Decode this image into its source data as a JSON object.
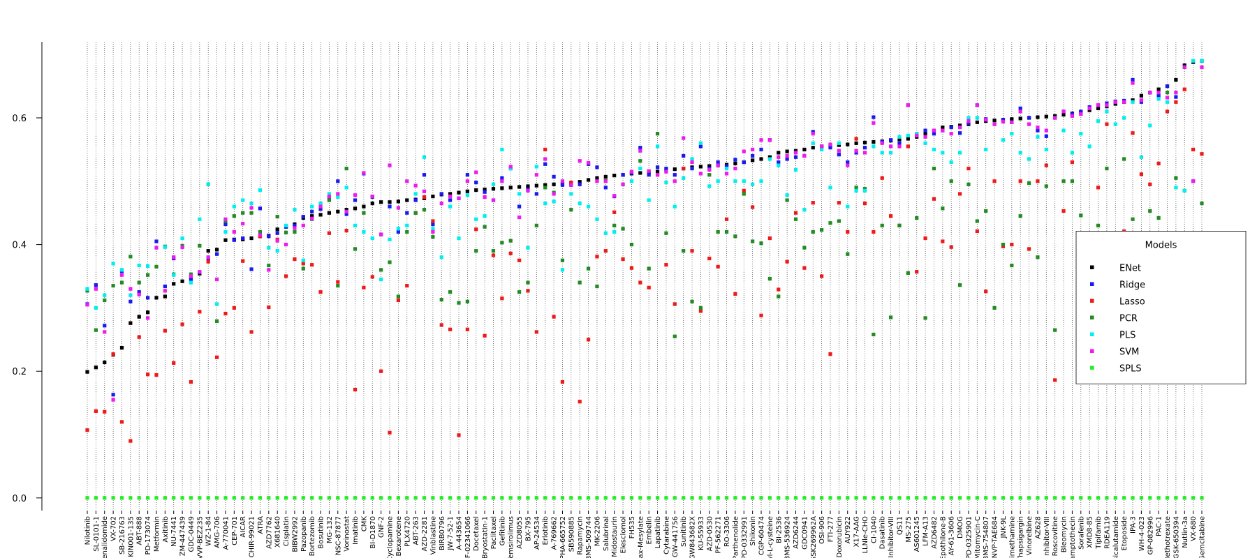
{
  "chart_data": {
    "type": "scatter",
    "categories": [
      "Nilotinib",
      "SL-0101-1",
      "enalidomide",
      "VX-702",
      "SB-216763",
      "KIN001-135",
      "ABT-888",
      "PD-173074",
      "Metformin",
      "Axitinib",
      "NU-7441",
      "ZM-447439",
      "GDC-0449",
      "VVP-BEZ235",
      "WZ-1-84",
      "AMG-706",
      "A-770041",
      "CEP-701",
      "AICAR",
      "CHIR-99021",
      "ATRA",
      "AZD7762",
      "X681640",
      "Cisplatin",
      "BIBW2992",
      "Pazopanib",
      "Bortezomib",
      "Bosutinib",
      "MG-132",
      "NSC-87877",
      "Vorinostat",
      "Imatinib",
      "CMK",
      "BI-D1870",
      "GNF-2",
      "Cyclopamine",
      "Bexarotene",
      "PLX4720",
      "ABT-263",
      "AZD-2281",
      "Vinblastine",
      "BIRB0796",
      "JW-7-52-1",
      "A-443654",
      "F-02341066",
      "Docetaxel",
      "Bryostatin-1",
      "Paclitaxel",
      "Gefitinib",
      "Temsirolimus",
      "AZD8055",
      "BX-795",
      "AP-24534",
      "Erlotinib",
      "A-769662",
      "PHA-665752",
      "SB590885",
      "Rapamycin",
      "BMS-509744",
      "MK-2206",
      "Salubrinal",
      "Midostaurin",
      "Elesclomol",
      "FH535",
      "bax-Mesylate",
      "Embelin",
      "Lapatinib",
      "Cytarabine",
      "GW-441756",
      "Sunitinib",
      "GW843682X",
      "KU-55933",
      "AZD-0530",
      "PF-562271",
      "RO-3306",
      "Parthenolide",
      "PD-0332991",
      "Shikonin",
      "CGP-60474",
      "yl-L-cysteine",
      "BI-2536",
      "BMS-536924",
      "AZD6244",
      "GDC0941",
      "GSK269962A",
      "OSI-906",
      "FTI-277",
      "Doxorubicin",
      "AUY922",
      "X17-AAG",
      "LLNle-CHO",
      "CI-1040",
      "Dasatinib",
      "Inhibitor-VIII",
      "QS11",
      "MS-275",
      "AS601245",
      "LFM-A13",
      "AZD6482",
      "Epothilone-B",
      "AY-61-3606",
      "DMOG",
      "PD-0325901",
      "Mitomycin-C",
      "BMS-754807",
      "NVP-TAE684",
      "JNK-9L",
      "rimethamine",
      "Thapsigargin",
      "Vinorelbine",
      "AZ628",
      "nhibitor-VIII",
      "Roscovitine",
      "Bleomycin",
      "amptothecin",
      "Sorafenib",
      "XMD8-85",
      "Tipifarnib",
      "RDEA119",
      "Bicalutamide",
      "Etoposide",
      "IPA-3",
      "WH-4-023",
      "GP-082996",
      "PAC-1",
      "Methotrexate",
      "GSK-650394",
      "Nutlin-3a",
      "VX-680",
      "Gemcitabine"
    ],
    "series": [
      {
        "name": "ENet",
        "color": "#000000",
        "values": [
          0.199,
          0.206,
          0.214,
          0.226,
          0.237,
          0.276,
          0.286,
          0.293,
          0.316,
          0.318,
          0.338,
          0.342,
          0.348,
          0.354,
          0.39,
          0.392,
          0.407,
          0.408,
          0.408,
          0.41,
          0.413,
          0.414,
          0.424,
          0.428,
          0.432,
          0.442,
          0.445,
          0.447,
          0.45,
          0.452,
          0.455,
          0.457,
          0.46,
          0.465,
          0.467,
          0.467,
          0.468,
          0.47,
          0.471,
          0.473,
          0.476,
          0.479,
          0.48,
          0.482,
          0.484,
          0.486,
          0.487,
          0.488,
          0.489,
          0.49,
          0.491,
          0.492,
          0.493,
          0.494,
          0.495,
          0.496,
          0.497,
          0.499,
          0.502,
          0.505,
          0.507,
          0.509,
          0.51,
          0.512,
          0.513,
          0.514,
          0.515,
          0.517,
          0.519,
          0.52,
          0.522,
          0.523,
          0.524,
          0.525,
          0.526,
          0.528,
          0.53,
          0.533,
          0.535,
          0.538,
          0.545,
          0.547,
          0.548,
          0.55,
          0.553,
          0.555,
          0.556,
          0.557,
          0.558,
          0.56,
          0.561,
          0.562,
          0.563,
          0.564,
          0.566,
          0.567,
          0.57,
          0.575,
          0.58,
          0.585,
          0.586,
          0.588,
          0.59,
          0.593,
          0.595,
          0.596,
          0.597,
          0.598,
          0.599,
          0.6,
          0.601,
          0.602,
          0.603,
          0.605,
          0.607,
          0.609,
          0.612,
          0.615,
          0.618,
          0.622,
          0.625,
          0.628,
          0.635,
          0.64,
          0.645,
          0.65,
          0.66,
          0.683,
          0.688,
          0.69
        ]
      },
      {
        "name": "Ridge",
        "color": "#1a1aee",
        "values": [
          0.306,
          0.336,
          0.272,
          0.163,
          0.358,
          0.31,
          0.325,
          0.316,
          0.405,
          0.334,
          0.378,
          0.396,
          0.345,
          0.356,
          0.377,
          0.385,
          0.432,
          0.407,
          0.41,
          0.361,
          0.457,
          0.413,
          0.418,
          0.428,
          0.43,
          0.444,
          0.452,
          0.456,
          0.474,
          0.5,
          0.448,
          0.47,
          0.512,
          0.475,
          0.416,
          0.46,
          0.42,
          0.45,
          0.47,
          0.51,
          0.432,
          0.48,
          0.47,
          0.473,
          0.51,
          0.498,
          0.483,
          0.47,
          0.505,
          0.52,
          0.46,
          0.487,
          0.48,
          0.527,
          0.507,
          0.494,
          0.494,
          0.495,
          0.527,
          0.522,
          0.49,
          0.476,
          0.51,
          0.513,
          0.553,
          0.51,
          0.522,
          0.52,
          0.51,
          0.54,
          0.52,
          0.555,
          0.52,
          0.53,
          0.524,
          0.534,
          0.53,
          0.54,
          0.55,
          0.565,
          0.53,
          0.535,
          0.538,
          0.54,
          0.578,
          0.555,
          0.553,
          0.542,
          0.53,
          0.545,
          0.553,
          0.601,
          0.562,
          0.565,
          0.56,
          0.62,
          0.575,
          0.58,
          0.575,
          0.58,
          0.585,
          0.576,
          0.592,
          0.62,
          0.598,
          0.59,
          0.597,
          0.593,
          0.615,
          0.6,
          0.58,
          0.571,
          0.6,
          0.61,
          0.606,
          0.61,
          0.617,
          0.62,
          0.623,
          0.626,
          0.627,
          0.66,
          0.625,
          0.64,
          0.635,
          0.65,
          0.633,
          0.68,
          0.5,
          0.69
        ]
      },
      {
        "name": "Lasso",
        "color": "#ee1a1a",
        "values": [
          0.107,
          0.137,
          0.136,
          0.227,
          0.12,
          0.09,
          0.254,
          0.195,
          0.194,
          0.264,
          0.213,
          0.274,
          0.183,
          0.294,
          0.373,
          0.222,
          0.291,
          0.3,
          0.374,
          0.262,
          0.413,
          0.301,
          0.408,
          0.35,
          0.377,
          0.37,
          0.368,
          0.325,
          0.418,
          0.341,
          0.422,
          0.171,
          0.332,
          0.349,
          0.2,
          0.103,
          0.312,
          0.335,
          0.45,
          0.475,
          0.437,
          0.273,
          0.266,
          0.099,
          0.266,
          0.424,
          0.256,
          0.383,
          0.315,
          0.386,
          0.375,
          0.327,
          0.262,
          0.55,
          0.286,
          0.183,
          0.498,
          0.152,
          0.25,
          0.381,
          0.39,
          0.451,
          0.377,
          0.363,
          0.34,
          0.332,
          0.51,
          0.368,
          0.306,
          0.52,
          0.39,
          0.295,
          0.378,
          0.365,
          0.44,
          0.322,
          0.485,
          0.459,
          0.288,
          0.41,
          0.329,
          0.373,
          0.45,
          0.363,
          0.466,
          0.35,
          0.227,
          0.466,
          0.42,
          0.567,
          0.465,
          0.42,
          0.505,
          0.445,
          0.43,
          0.555,
          0.357,
          0.41,
          0.472,
          0.405,
          0.396,
          0.48,
          0.52,
          0.421,
          0.326,
          0.5,
          0.397,
          0.4,
          0.5,
          0.393,
          0.5,
          0.525,
          0.186,
          0.453,
          0.53,
          0.394,
          0.398,
          0.49,
          0.59,
          0.395,
          0.421,
          0.576,
          0.511,
          0.495,
          0.528,
          0.61,
          0.625,
          0.645,
          0.55,
          0.543
        ]
      },
      {
        "name": "PCR",
        "color": "#228b22",
        "values": [
          0.327,
          0.265,
          0.312,
          0.335,
          0.34,
          0.381,
          0.34,
          0.352,
          0.365,
          0.397,
          0.353,
          0.398,
          0.353,
          0.398,
          0.495,
          0.279,
          0.437,
          0.445,
          0.45,
          0.45,
          0.42,
          0.367,
          0.444,
          0.419,
          0.42,
          0.362,
          0.44,
          0.465,
          0.47,
          0.335,
          0.52,
          0.393,
          0.45,
          0.476,
          0.36,
          0.372,
          0.318,
          0.42,
          0.45,
          0.455,
          0.412,
          0.313,
          0.325,
          0.308,
          0.31,
          0.39,
          0.428,
          0.39,
          0.403,
          0.406,
          0.325,
          0.34,
          0.43,
          0.49,
          0.482,
          0.375,
          0.455,
          0.34,
          0.362,
          0.334,
          0.502,
          0.43,
          0.425,
          0.4,
          0.532,
          0.362,
          0.575,
          0.418,
          0.255,
          0.39,
          0.31,
          0.3,
          0.51,
          0.42,
          0.42,
          0.413,
          0.48,
          0.405,
          0.402,
          0.346,
          0.318,
          0.47,
          0.44,
          0.395,
          0.42,
          0.423,
          0.434,
          0.437,
          0.385,
          0.49,
          0.488,
          0.258,
          0.43,
          0.285,
          0.43,
          0.355,
          0.442,
          0.284,
          0.52,
          0.457,
          0.5,
          0.336,
          0.495,
          0.437,
          0.453,
          0.3,
          0.4,
          0.367,
          0.445,
          0.497,
          0.38,
          0.492,
          0.265,
          0.5,
          0.5,
          0.446,
          0.335,
          0.43,
          0.52,
          0.362,
          0.535,
          0.44,
          0.393,
          0.453,
          0.442,
          0.64,
          0.505,
          0.485,
          0.412,
          0.465
        ]
      },
      {
        "name": "PLS",
        "color": "#00eeee",
        "values": [
          0.33,
          0.3,
          0.32,
          0.37,
          0.36,
          0.32,
          0.367,
          0.366,
          0.395,
          0.396,
          0.352,
          0.41,
          0.34,
          0.44,
          0.495,
          0.306,
          0.42,
          0.46,
          0.47,
          0.465,
          0.486,
          0.395,
          0.39,
          0.43,
          0.455,
          0.375,
          0.46,
          0.465,
          0.48,
          0.475,
          0.49,
          0.43,
          0.42,
          0.41,
          0.345,
          0.408,
          0.425,
          0.43,
          0.48,
          0.538,
          0.425,
          0.38,
          0.46,
          0.41,
          0.478,
          0.44,
          0.445,
          0.495,
          0.55,
          0.52,
          0.48,
          0.395,
          0.523,
          0.465,
          0.468,
          0.36,
          0.48,
          0.465,
          0.46,
          0.44,
          0.418,
          0.42,
          0.495,
          0.5,
          0.52,
          0.47,
          0.555,
          0.498,
          0.46,
          0.505,
          0.535,
          0.56,
          0.492,
          0.5,
          0.52,
          0.5,
          0.5,
          0.495,
          0.5,
          0.535,
          0.525,
          0.478,
          0.518,
          0.455,
          0.56,
          0.55,
          0.49,
          0.56,
          0.46,
          0.485,
          0.485,
          0.555,
          0.545,
          0.545,
          0.57,
          0.572,
          0.575,
          0.56,
          0.55,
          0.545,
          0.53,
          0.545,
          0.6,
          0.6,
          0.55,
          0.59,
          0.565,
          0.575,
          0.545,
          0.535,
          0.57,
          0.55,
          0.6,
          0.58,
          0.545,
          0.575,
          0.555,
          0.595,
          0.61,
          0.59,
          0.6,
          0.625,
          0.538,
          0.588,
          0.63,
          0.625,
          0.49,
          0.485,
          0.69,
          0.69
        ]
      },
      {
        "name": "SVM",
        "color": "#ee1aee",
        "values": [
          0.305,
          0.33,
          0.262,
          0.155,
          0.352,
          0.33,
          0.321,
          0.284,
          0.395,
          0.327,
          0.38,
          0.396,
          0.35,
          0.357,
          0.38,
          0.345,
          0.44,
          0.42,
          0.433,
          0.458,
          0.415,
          0.36,
          0.406,
          0.4,
          0.426,
          0.43,
          0.441,
          0.46,
          0.476,
          0.48,
          0.452,
          0.478,
          0.513,
          0.476,
          0.416,
          0.525,
          0.458,
          0.5,
          0.493,
          0.484,
          0.42,
          0.465,
          0.476,
          0.473,
          0.5,
          0.514,
          0.475,
          0.47,
          0.5,
          0.523,
          0.443,
          0.485,
          0.51,
          0.535,
          0.48,
          0.5,
          0.494,
          0.532,
          0.529,
          0.5,
          0.5,
          0.477,
          0.495,
          0.515,
          0.548,
          0.516,
          0.51,
          0.515,
          0.5,
          0.568,
          0.53,
          0.512,
          0.518,
          0.525,
          0.512,
          0.52,
          0.547,
          0.55,
          0.565,
          0.565,
          0.538,
          0.54,
          0.545,
          0.54,
          0.575,
          0.555,
          0.558,
          0.548,
          0.525,
          0.548,
          0.545,
          0.592,
          0.56,
          0.555,
          0.555,
          0.62,
          0.572,
          0.57,
          0.58,
          0.58,
          0.575,
          0.585,
          0.595,
          0.62,
          0.597,
          0.59,
          0.594,
          0.593,
          0.61,
          0.59,
          0.585,
          0.58,
          0.6,
          0.61,
          0.603,
          0.606,
          0.615,
          0.62,
          0.62,
          0.625,
          0.625,
          0.655,
          0.628,
          0.64,
          0.64,
          0.632,
          0.64,
          0.68,
          0.5,
          0.68
        ]
      },
      {
        "name": "SPLS",
        "color": "#22ee22",
        "values": [
          0,
          0,
          0,
          0,
          0,
          0,
          0,
          0,
          0,
          0,
          0,
          0,
          0,
          0,
          0,
          0,
          0,
          0,
          0,
          0,
          0,
          0,
          0,
          0,
          0,
          0,
          0,
          0,
          0,
          0,
          0,
          0,
          0,
          0,
          0,
          0,
          0,
          0,
          0,
          0,
          0,
          0,
          0,
          0,
          0,
          0,
          0,
          0,
          0,
          0,
          0,
          0,
          0,
          0,
          0,
          0,
          0,
          0,
          0,
          0,
          0,
          0,
          0,
          0,
          0,
          0,
          0,
          0,
          0,
          0,
          0,
          0,
          0,
          0,
          0,
          0,
          0,
          0,
          0,
          0,
          0,
          0,
          0,
          0,
          0,
          0,
          0,
          0,
          0,
          0,
          0,
          0,
          0,
          0,
          0,
          0,
          0,
          0,
          0,
          0,
          0,
          0,
          0,
          0,
          0,
          0,
          0,
          0,
          0,
          0,
          0,
          0,
          0,
          0,
          0,
          0,
          0,
          0,
          0,
          0,
          0,
          0,
          0,
          0,
          0,
          0,
          0,
          0,
          0,
          0
        ]
      }
    ],
    "ylim": [
      -0.02,
      0.72
    ],
    "yticks": [
      {
        "value": 0,
        "label": "0.0"
      },
      {
        "value": 0.2,
        "label": "0.2"
      },
      {
        "value": 0.4,
        "label": "0.4"
      },
      {
        "value": 0.6,
        "label": "0.6"
      }
    ],
    "grid": true,
    "legend_title": "Models",
    "legend": "right"
  }
}
